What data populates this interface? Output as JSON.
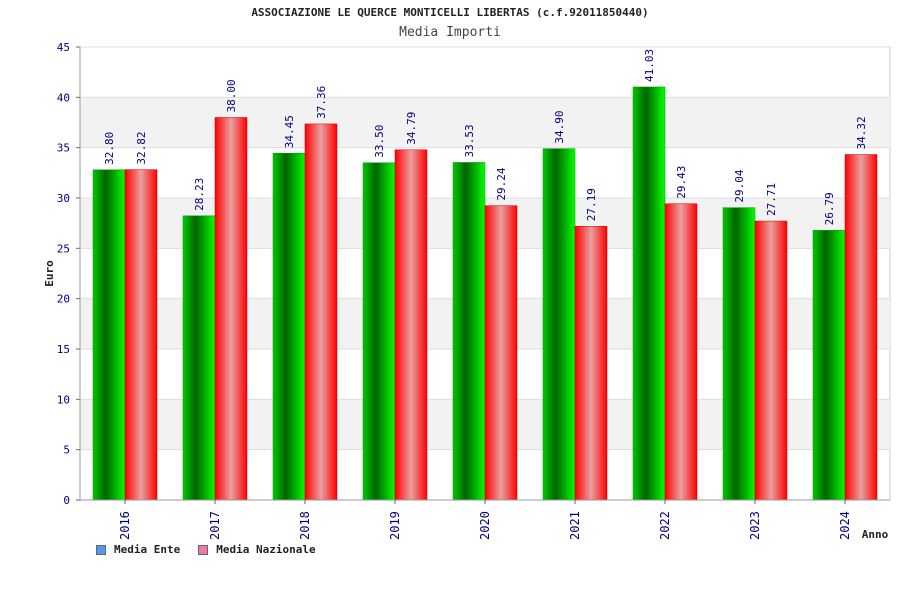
{
  "header": {
    "title": "ASSOCIAZIONE LE QUERCE MONTICELLI LIBERTAS (c.f.92011850440)",
    "subtitle": "Media Importi"
  },
  "colors": {
    "series_1_dark": "#006400",
    "series_1_light": "#00ee00",
    "series_2_dark": "#ee0000",
    "series_2_light": "#f0a0a0",
    "legend_1": "#5599ee",
    "legend_2": "#ee77aa",
    "axis_text": "#000080",
    "label_text": "#000080"
  },
  "legend": [
    {
      "label": "Media Ente"
    },
    {
      "label": "Media Nazionale"
    }
  ],
  "chart_data": {
    "type": "bar",
    "title": "Media Importi",
    "xlabel": "Anno",
    "ylabel": "Euro",
    "ylim": [
      0,
      45
    ],
    "yticks": [
      0,
      5,
      10,
      15,
      20,
      25,
      30,
      35,
      40,
      45
    ],
    "categories": [
      "2016",
      "2017",
      "2018",
      "2019",
      "2020",
      "2021",
      "2022",
      "2023",
      "2024"
    ],
    "series": [
      {
        "name": "Media Ente",
        "values": [
          32.8,
          28.23,
          34.45,
          33.5,
          33.53,
          34.9,
          41.03,
          29.04,
          26.79
        ],
        "labels": [
          "32.80",
          "28.23",
          "34.45",
          "33.50",
          "33.53",
          "34.90",
          "41.03",
          "29.04",
          "26.79"
        ]
      },
      {
        "name": "Media Nazionale",
        "values": [
          32.82,
          38.0,
          37.36,
          34.79,
          29.24,
          27.19,
          29.43,
          27.71,
          34.32
        ],
        "labels": [
          "32.82",
          "38.00",
          "37.36",
          "34.79",
          "29.24",
          "27.19",
          "29.43",
          "27.71",
          "34.32"
        ]
      }
    ]
  }
}
